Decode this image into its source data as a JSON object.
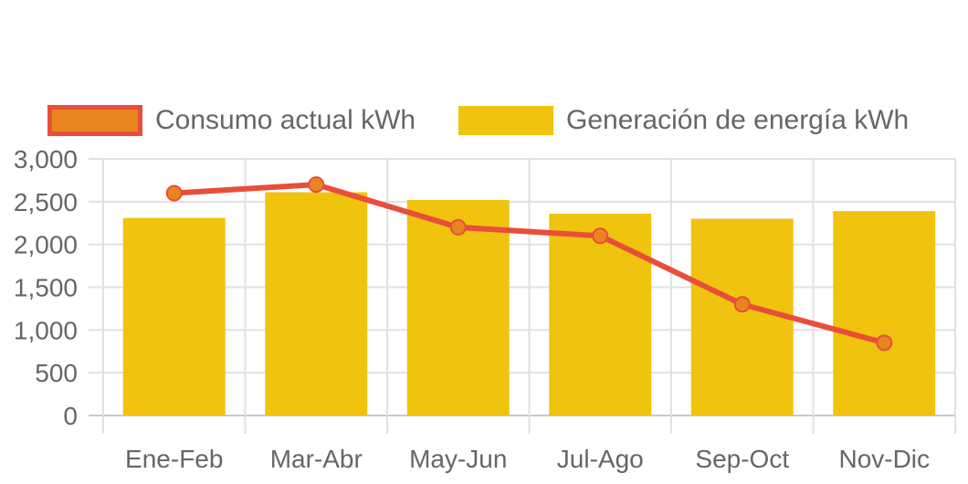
{
  "chart_data": {
    "type": "bar",
    "categories": [
      "Ene-Feb",
      "Mar-Abr",
      "May-Jun",
      "Jul-Ago",
      "Sep-Oct",
      "Nov-Dic"
    ],
    "series": [
      {
        "name": "Consumo actual kWh",
        "type": "line",
        "color": "#e84e3a",
        "point_fill": "#e8851f",
        "values": [
          2600,
          2700,
          2200,
          2100,
          1300,
          850
        ]
      },
      {
        "name": "Generación de energía kWh",
        "type": "bar",
        "color": "#f0c30f",
        "values": [
          2310,
          2610,
          2520,
          2360,
          2300,
          2390
        ]
      }
    ],
    "y_ticks": [
      "0",
      "500",
      "1,000",
      "1,500",
      "2,000",
      "2,500",
      "3,000"
    ],
    "ylim": [
      0,
      3000
    ],
    "grid": true,
    "legend_position": "top"
  }
}
